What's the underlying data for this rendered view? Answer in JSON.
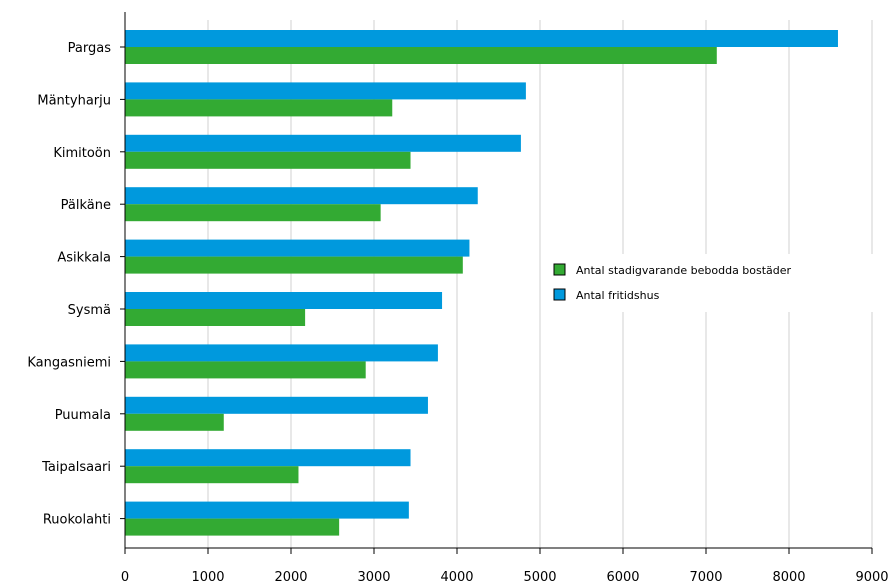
{
  "chart_data": {
    "type": "bar",
    "orientation": "horizontal",
    "categories": [
      "Pargas",
      "Mäntyharju",
      "Kimitoön",
      "Pälkäne",
      "Asikkala",
      "Sysmä",
      "Kangasniemi",
      "Puumala",
      "Taipalsaari",
      "Ruokolahti"
    ],
    "series": [
      {
        "name": "Antal fritidshus",
        "color": "#0099dd",
        "values": [
          8590,
          4830,
          4770,
          4250,
          4150,
          3820,
          3770,
          3650,
          3440,
          3420
        ]
      },
      {
        "name": "Antal stadigvarande bebodda bostäder",
        "color": "#33aa33",
        "values": [
          7130,
          3220,
          3440,
          3080,
          4070,
          2170,
          2900,
          1190,
          2090,
          2580
        ]
      }
    ],
    "xlim": [
      0,
      9000
    ],
    "xticks": [
      "0",
      "1000",
      "2000",
      "3000",
      "4000",
      "5000",
      "6000",
      "7000",
      "8000",
      "9000"
    ],
    "grid": "vertical",
    "legend_position": "right",
    "legend": [
      {
        "label": "Antal stadigvarande bebodda bostäder",
        "color": "#33aa33"
      },
      {
        "label": "Antal fritidshus",
        "color": "#0099dd"
      }
    ]
  }
}
